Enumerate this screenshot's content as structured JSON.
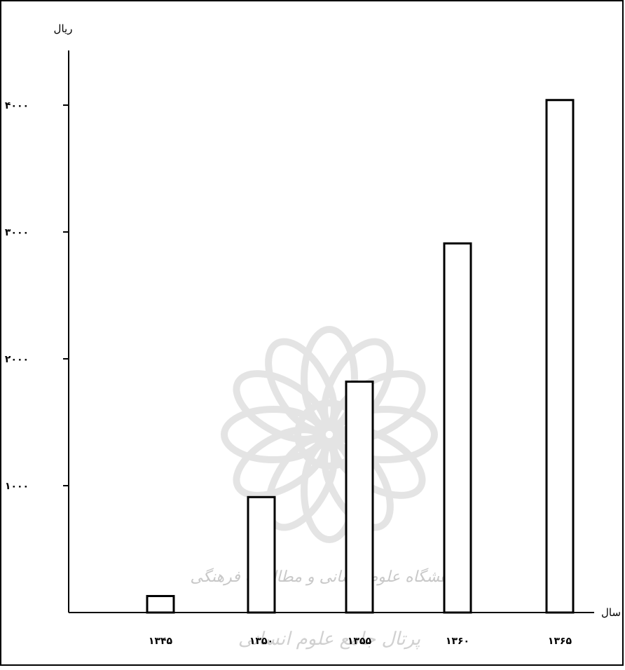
{
  "chart_data": {
    "type": "bar",
    "categories": [
      "۱۳۴۵",
      "۱۳۵۰",
      "۱۳۵۵",
      "۱۳۶۰",
      "۱۳۶۵"
    ],
    "values": [
      130,
      910,
      1820,
      2910,
      4040
    ],
    "ylabel": "ریال",
    "xlabel": "سال",
    "ylim": [
      0,
      4400
    ],
    "yticks": [
      {
        "value": 1000,
        "label": "۱۰۰۰"
      },
      {
        "value": 2000,
        "label": "۲۰۰۰"
      },
      {
        "value": 3000,
        "label": "۳۰۰۰"
      },
      {
        "value": 4000,
        "label": "۴۰۰۰"
      }
    ],
    "bar_fill": "#ffffff",
    "bar_stroke": "#000000",
    "grid": false,
    "legend": "none"
  },
  "watermark": {
    "line1": "پژوهشگاه علوم انسانی و مطالعات فرهنگی",
    "line2": "پرتال جامع علوم انسانی"
  }
}
